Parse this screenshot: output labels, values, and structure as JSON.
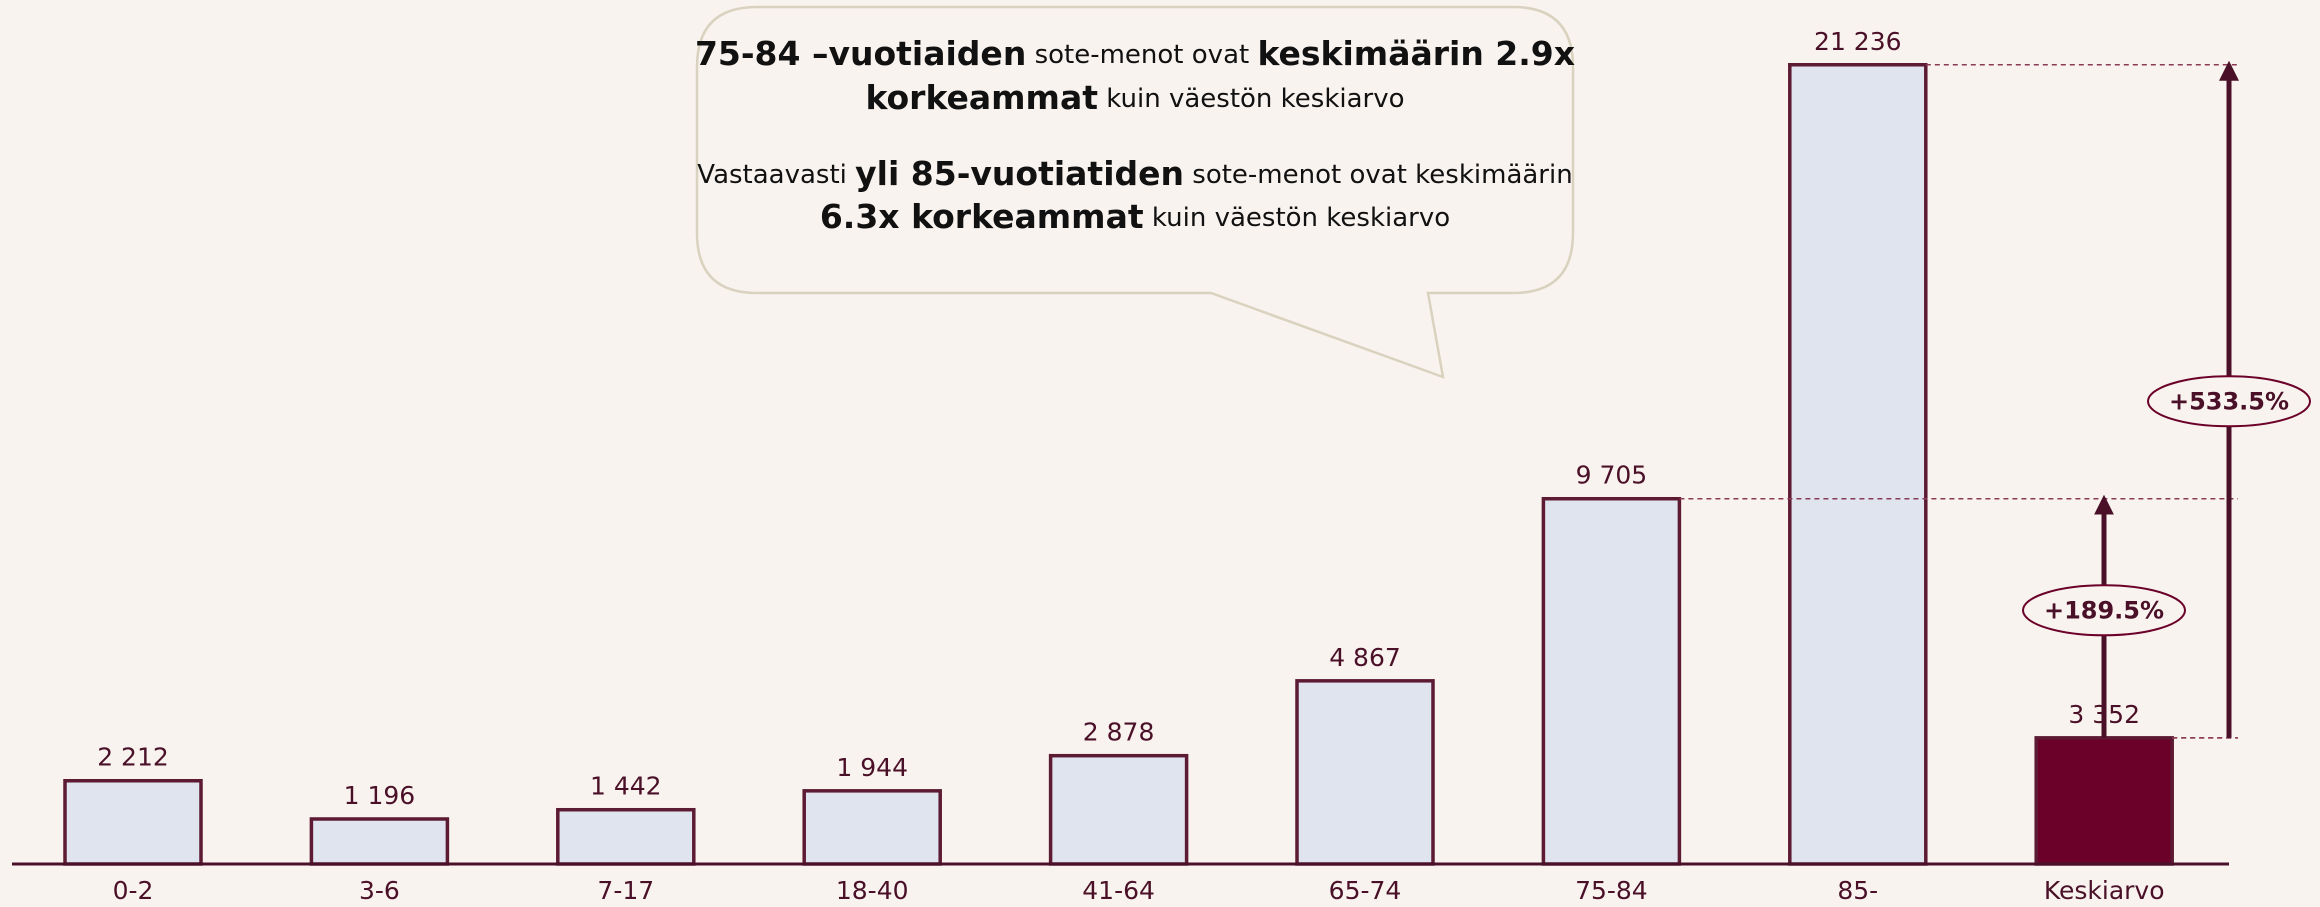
{
  "chart_data": {
    "type": "bar",
    "categories": [
      "0-2",
      "3-6",
      "7-17",
      "18-40",
      "41-64",
      "65-74",
      "75-84",
      "85-",
      "Keskiarvo"
    ],
    "values": [
      2212,
      1196,
      1442,
      1944,
      2878,
      4867,
      9705,
      21236,
      3352
    ],
    "value_labels": [
      "2 212",
      "1 196",
      "1 442",
      "1 944",
      "2 878",
      "4 867",
      "9 705",
      "21 236",
      "3 352"
    ],
    "colors": [
      "#dfe4ee",
      "#dfe4ee",
      "#dfe4ee",
      "#dfe4ee",
      "#dfe4ee",
      "#dfe4ee",
      "#dfe4ee",
      "#dfe4ee",
      "#6b0029"
    ],
    "ylim": [
      0,
      22000
    ],
    "callout": [
      [
        {
          "text": "75-84 –vuotiaiden",
          "bold": true
        },
        {
          "text": " sote-menot ovat ",
          "bold": false
        },
        {
          "text": "keskimäärin 2.9x",
          "bold": true
        }
      ],
      [
        {
          "text": "korkeammat",
          "bold": true
        },
        {
          "text": " kuin väestön keskiarvo",
          "bold": false
        }
      ],
      [
        {
          "text": "Vastaavasti ",
          "bold": false
        },
        {
          "text": "yli 85-vuotiatiden",
          "bold": true
        },
        {
          "text": " sote-menot ovat keskimäärin",
          "bold": false
        }
      ],
      [
        {
          "text": "6.3x korkeammat",
          "bold": true
        },
        {
          "text": " kuin väestön keskiarvo",
          "bold": false
        }
      ]
    ],
    "differences": [
      {
        "label": "+189.5%",
        "from": 8,
        "to": 6
      },
      {
        "label": "+533.5%",
        "from": 8,
        "to": 7
      }
    ]
  }
}
